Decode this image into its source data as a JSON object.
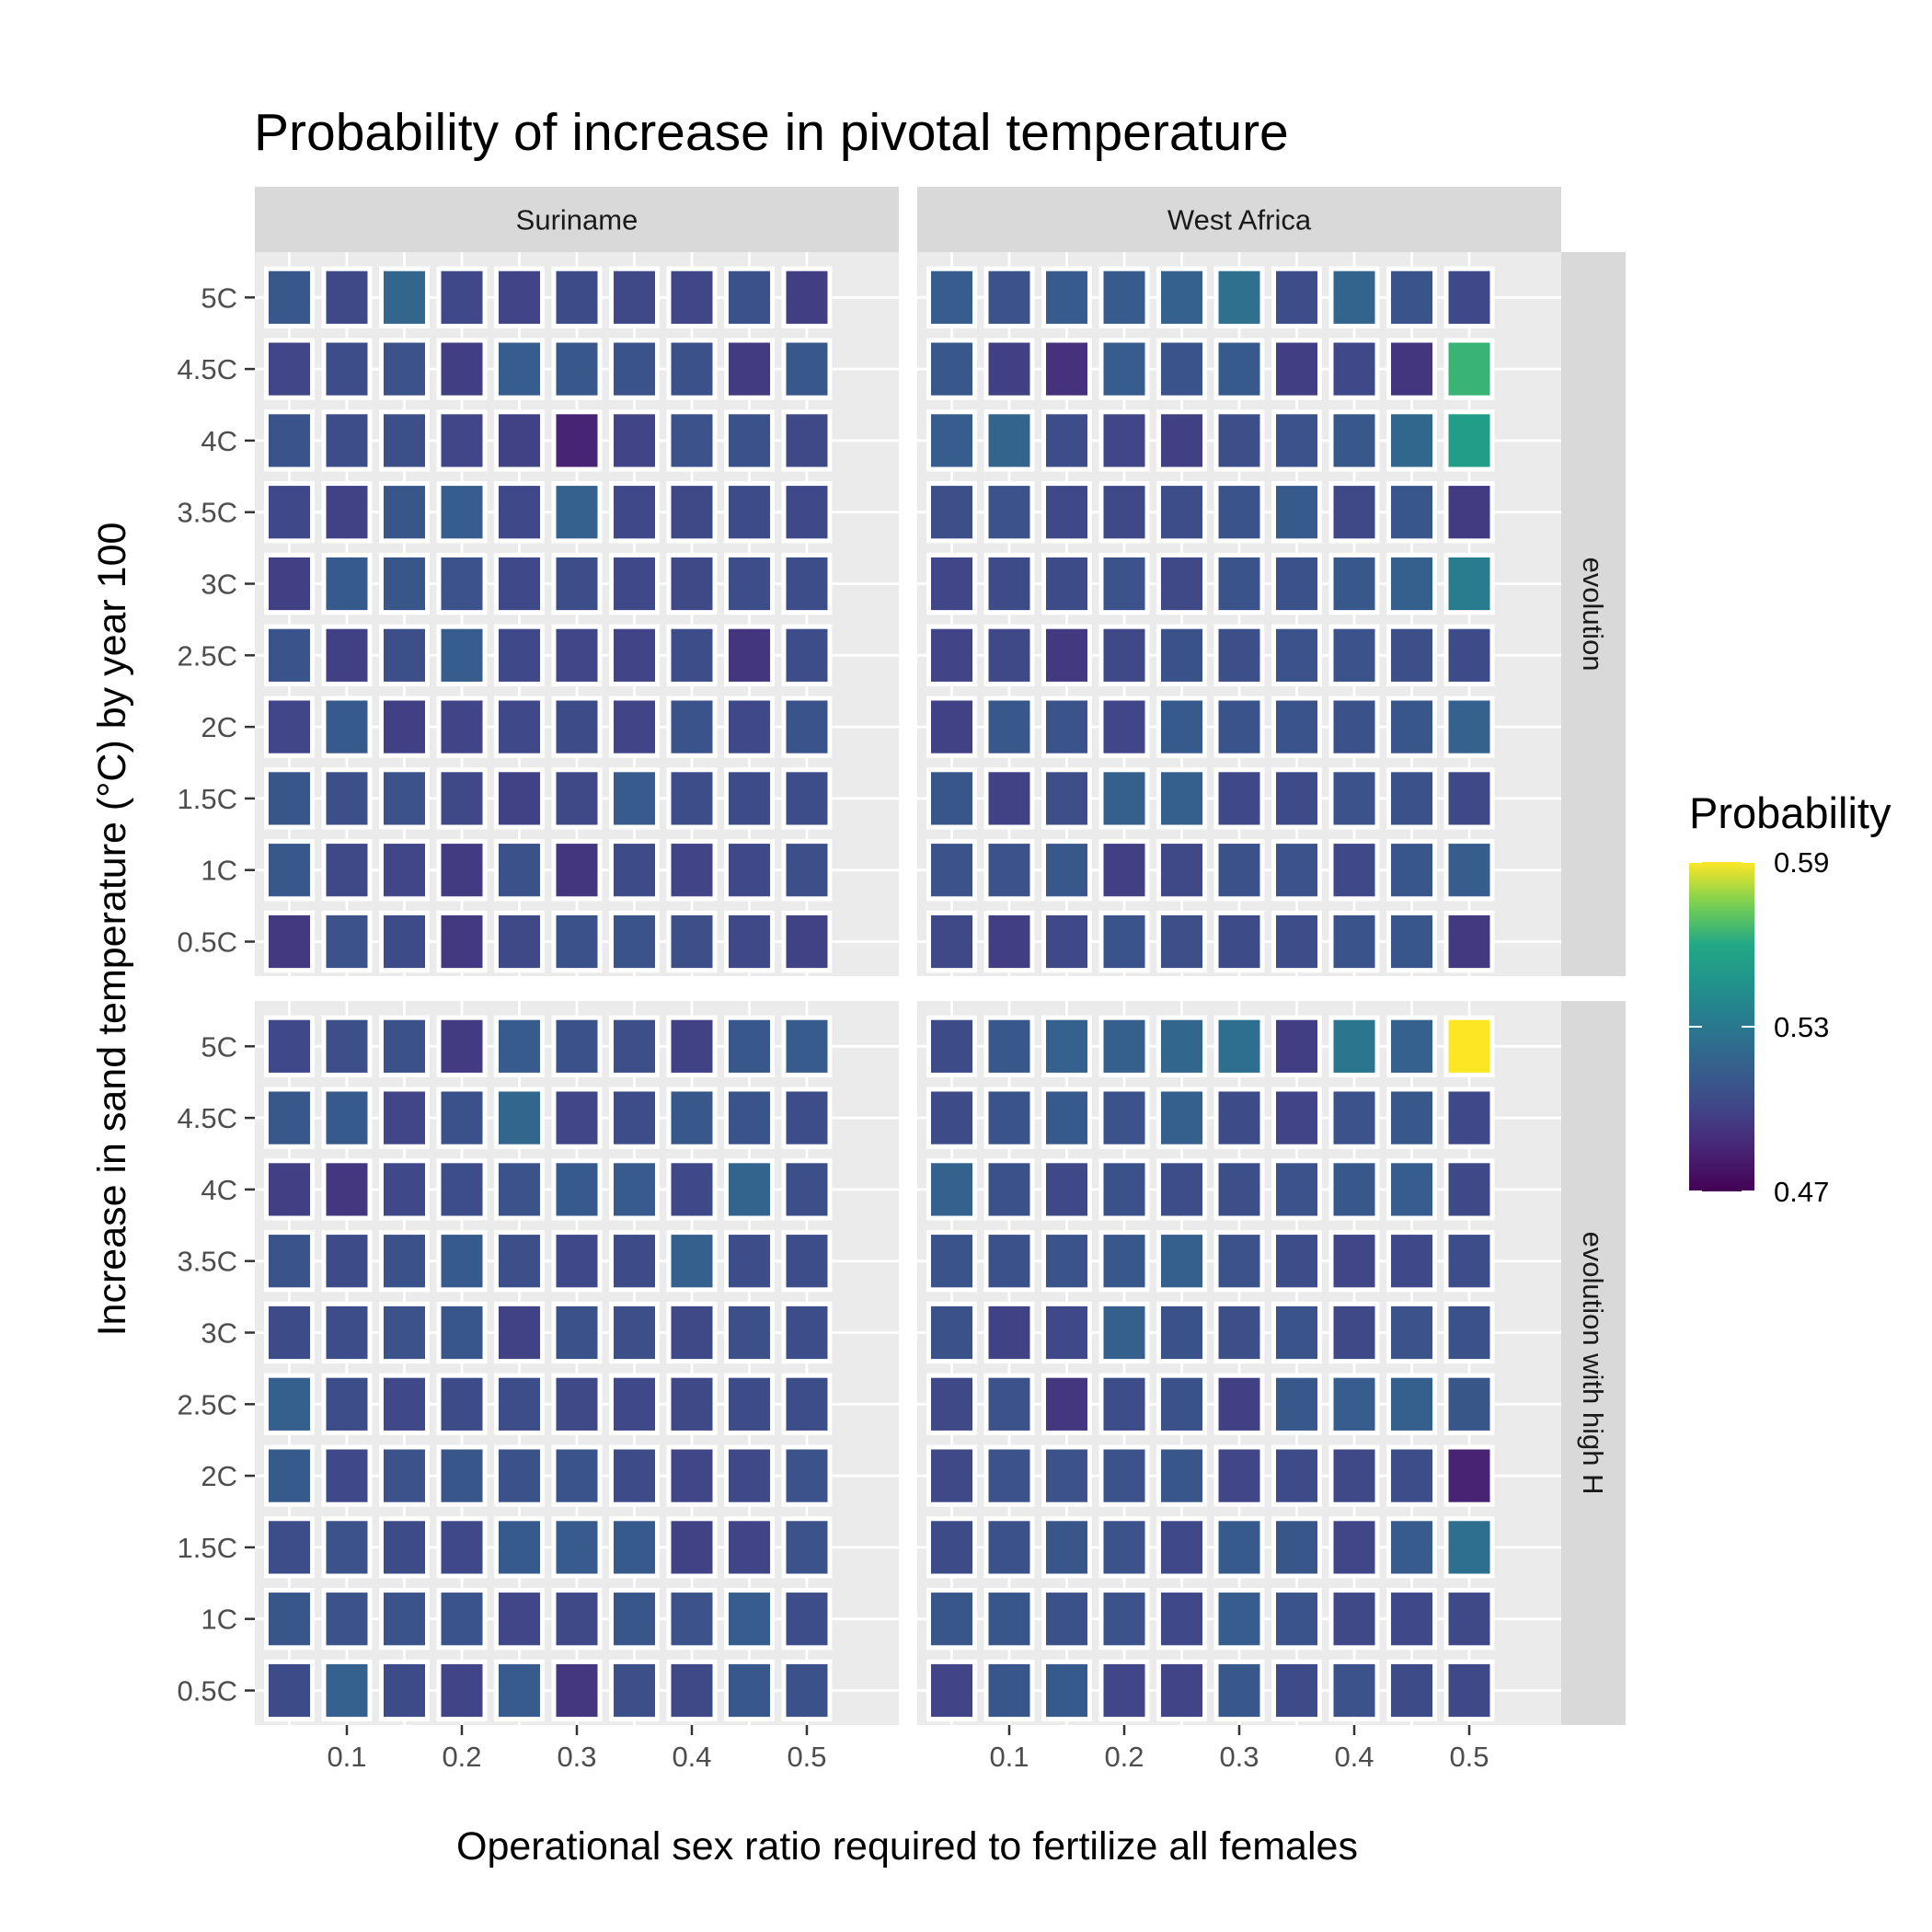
{
  "chart_data": {
    "type": "heatmap",
    "title": "Probability of increase in pivotal temperature",
    "xlabel": "Operational sex ratio required to fertilize all females",
    "ylabel": "Increase in sand temperature (°C) by year 100",
    "x": [
      0.05,
      0.1,
      0.15,
      0.2,
      0.25,
      0.3,
      0.35,
      0.4,
      0.45,
      0.5
    ],
    "x_tick_values": [
      0.1,
      0.2,
      0.3,
      0.4,
      0.5
    ],
    "x_tick_labels": [
      "0.1",
      "0.2",
      "0.3",
      "0.4",
      "0.5"
    ],
    "y_categories": [
      "0.5C",
      "1C",
      "1.5C",
      "2C",
      "2.5C",
      "3C",
      "3.5C",
      "4C",
      "4.5C",
      "5C"
    ],
    "columns": [
      "Suriname",
      "West Africa"
    ],
    "rows": [
      "evolution",
      "evolution with high H"
    ],
    "legend": {
      "title": "Probability",
      "placement": "right",
      "min": 0.47,
      "max": 0.59,
      "breaks": [
        0.59,
        0.53,
        0.47
      ],
      "break_labels": [
        "0.59",
        "0.53",
        "0.47"
      ],
      "palette": "viridis"
    },
    "panels": [
      {
        "column": "Suriname",
        "row": "evolution",
        "values": [
          [
            0.495,
            0.508,
            0.504,
            0.495,
            0.503,
            0.507,
            0.509,
            0.506,
            0.503,
            0.499
          ],
          [
            0.511,
            0.503,
            0.501,
            0.496,
            0.507,
            0.493,
            0.504,
            0.5,
            0.502,
            0.506
          ],
          [
            0.51,
            0.506,
            0.508,
            0.503,
            0.499,
            0.503,
            0.513,
            0.505,
            0.504,
            0.505
          ],
          [
            0.501,
            0.512,
            0.498,
            0.5,
            0.502,
            0.504,
            0.5,
            0.509,
            0.502,
            0.509
          ],
          [
            0.509,
            0.498,
            0.506,
            0.514,
            0.502,
            0.501,
            0.5,
            0.505,
            0.493,
            0.505
          ],
          [
            0.498,
            0.512,
            0.51,
            0.508,
            0.502,
            0.505,
            0.502,
            0.503,
            0.505,
            0.505
          ],
          [
            0.502,
            0.499,
            0.51,
            0.514,
            0.502,
            0.516,
            0.502,
            0.503,
            0.504,
            0.502
          ],
          [
            0.509,
            0.505,
            0.506,
            0.501,
            0.499,
            0.485,
            0.5,
            0.508,
            0.507,
            0.503
          ],
          [
            0.501,
            0.505,
            0.508,
            0.497,
            0.514,
            0.511,
            0.509,
            0.507,
            0.496,
            0.511
          ],
          [
            0.511,
            0.503,
            0.519,
            0.502,
            0.5,
            0.504,
            0.503,
            0.501,
            0.507,
            0.497
          ]
        ]
      },
      {
        "column": "West Africa",
        "row": "evolution",
        "values": [
          [
            0.503,
            0.497,
            0.503,
            0.509,
            0.506,
            0.504,
            0.505,
            0.509,
            0.51,
            0.495
          ],
          [
            0.508,
            0.508,
            0.511,
            0.498,
            0.503,
            0.507,
            0.508,
            0.502,
            0.51,
            0.514
          ],
          [
            0.51,
            0.499,
            0.506,
            0.515,
            0.515,
            0.502,
            0.504,
            0.508,
            0.507,
            0.503
          ],
          [
            0.499,
            0.511,
            0.509,
            0.501,
            0.512,
            0.509,
            0.509,
            0.507,
            0.51,
            0.516
          ],
          [
            0.5,
            0.503,
            0.495,
            0.503,
            0.507,
            0.506,
            0.508,
            0.508,
            0.506,
            0.504
          ],
          [
            0.501,
            0.504,
            0.504,
            0.508,
            0.503,
            0.509,
            0.507,
            0.511,
            0.515,
            0.532
          ],
          [
            0.506,
            0.508,
            0.503,
            0.503,
            0.505,
            0.509,
            0.512,
            0.503,
            0.51,
            0.496
          ],
          [
            0.514,
            0.518,
            0.505,
            0.501,
            0.498,
            0.506,
            0.508,
            0.511,
            0.52,
            0.553
          ],
          [
            0.511,
            0.498,
            0.491,
            0.514,
            0.509,
            0.512,
            0.497,
            0.502,
            0.493,
            0.564
          ],
          [
            0.514,
            0.508,
            0.513,
            0.513,
            0.516,
            0.525,
            0.505,
            0.518,
            0.509,
            0.502
          ]
        ]
      },
      {
        "column": "Suriname",
        "row": "evolution with high H",
        "values": [
          [
            0.504,
            0.516,
            0.504,
            0.5,
            0.513,
            0.494,
            0.506,
            0.503,
            0.511,
            0.507
          ],
          [
            0.51,
            0.508,
            0.509,
            0.509,
            0.501,
            0.503,
            0.51,
            0.508,
            0.514,
            0.505
          ],
          [
            0.505,
            0.508,
            0.504,
            0.502,
            0.512,
            0.513,
            0.512,
            0.499,
            0.5,
            0.508
          ],
          [
            0.512,
            0.502,
            0.508,
            0.51,
            0.507,
            0.509,
            0.504,
            0.501,
            0.503,
            0.508
          ],
          [
            0.515,
            0.505,
            0.502,
            0.504,
            0.505,
            0.503,
            0.502,
            0.503,
            0.504,
            0.505
          ],
          [
            0.504,
            0.505,
            0.508,
            0.51,
            0.499,
            0.507,
            0.506,
            0.503,
            0.506,
            0.505
          ],
          [
            0.509,
            0.504,
            0.507,
            0.512,
            0.506,
            0.502,
            0.504,
            0.515,
            0.505,
            0.505
          ],
          [
            0.498,
            0.494,
            0.502,
            0.505,
            0.508,
            0.512,
            0.513,
            0.502,
            0.518,
            0.506
          ],
          [
            0.511,
            0.512,
            0.501,
            0.507,
            0.519,
            0.501,
            0.505,
            0.511,
            0.509,
            0.505
          ],
          [
            0.502,
            0.506,
            0.507,
            0.496,
            0.513,
            0.507,
            0.506,
            0.499,
            0.511,
            0.513
          ]
        ]
      },
      {
        "column": "West Africa",
        "row": "evolution with high H",
        "values": [
          [
            0.5,
            0.51,
            0.512,
            0.501,
            0.5,
            0.511,
            0.504,
            0.508,
            0.504,
            0.503
          ],
          [
            0.51,
            0.51,
            0.507,
            0.508,
            0.502,
            0.514,
            0.509,
            0.503,
            0.502,
            0.503
          ],
          [
            0.504,
            0.507,
            0.51,
            0.508,
            0.502,
            0.512,
            0.51,
            0.501,
            0.513,
            0.524
          ],
          [
            0.503,
            0.508,
            0.508,
            0.508,
            0.51,
            0.501,
            0.504,
            0.503,
            0.505,
            0.484
          ],
          [
            0.503,
            0.508,
            0.494,
            0.505,
            0.507,
            0.498,
            0.511,
            0.514,
            0.515,
            0.51
          ],
          [
            0.507,
            0.499,
            0.502,
            0.515,
            0.507,
            0.506,
            0.509,
            0.503,
            0.508,
            0.507
          ],
          [
            0.509,
            0.507,
            0.509,
            0.511,
            0.515,
            0.508,
            0.505,
            0.501,
            0.502,
            0.505
          ],
          [
            0.516,
            0.507,
            0.503,
            0.507,
            0.505,
            0.506,
            0.508,
            0.511,
            0.514,
            0.503
          ],
          [
            0.504,
            0.509,
            0.512,
            0.508,
            0.515,
            0.504,
            0.5,
            0.508,
            0.511,
            0.502
          ],
          [
            0.504,
            0.511,
            0.516,
            0.515,
            0.519,
            0.524,
            0.497,
            0.528,
            0.516,
            0.59
          ]
        ]
      }
    ]
  }
}
